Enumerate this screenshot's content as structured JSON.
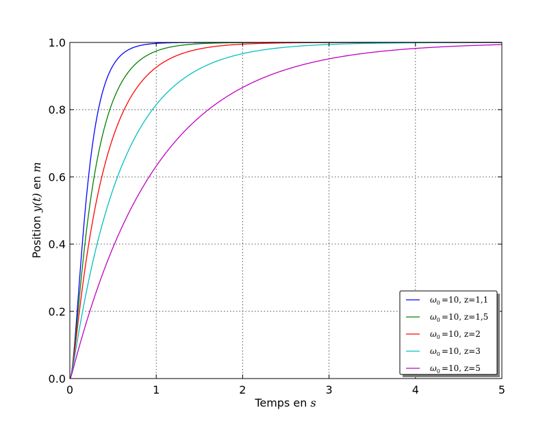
{
  "chart_data": {
    "type": "line",
    "xlabel": "Temps en",
    "xlabel_math": "s",
    "ylabel_pre": "Position",
    "ylabel_math1": "y(t)",
    "ylabel_mid": "en",
    "ylabel_math2": "m",
    "xlim": [
      0,
      5
    ],
    "ylim": [
      0,
      1
    ],
    "x_ticks": [
      "0",
      "1",
      "2",
      "3",
      "4",
      "5"
    ],
    "y_ticks": [
      "0.0",
      "0.2",
      "0.4",
      "0.6",
      "0.8",
      "1.0"
    ],
    "grid": true,
    "legend_position": "lower-right",
    "series": [
      {
        "name": "ω0 =10, z=1,1",
        "name_omega": "ω",
        "name_sub": "0",
        "name_rest": "=10, z=1,1",
        "color": "#0000ff",
        "omega0": 10,
        "zeta": 1.1
      },
      {
        "name": "ω0 =10, z=1,5",
        "name_omega": "ω",
        "name_sub": "0",
        "name_rest": "=10, z=1,5",
        "color": "#008000",
        "omega0": 10,
        "zeta": 1.5
      },
      {
        "name": "ω0 =10, z=2",
        "name_omega": "ω",
        "name_sub": "0",
        "name_rest": "=10, z=2",
        "color": "#ff0000",
        "omega0": 10,
        "zeta": 2
      },
      {
        "name": "ω0 =10, z=3",
        "name_omega": "ω",
        "name_sub": "0",
        "name_rest": "=10, z=3",
        "color": "#00bfbf",
        "omega0": 10,
        "zeta": 3
      },
      {
        "name": "ω0 =10, z=5",
        "name_omega": "ω",
        "name_sub": "0",
        "name_rest": "=10, z=5",
        "color": "#bf00bf",
        "omega0": 10,
        "zeta": 5
      }
    ]
  }
}
